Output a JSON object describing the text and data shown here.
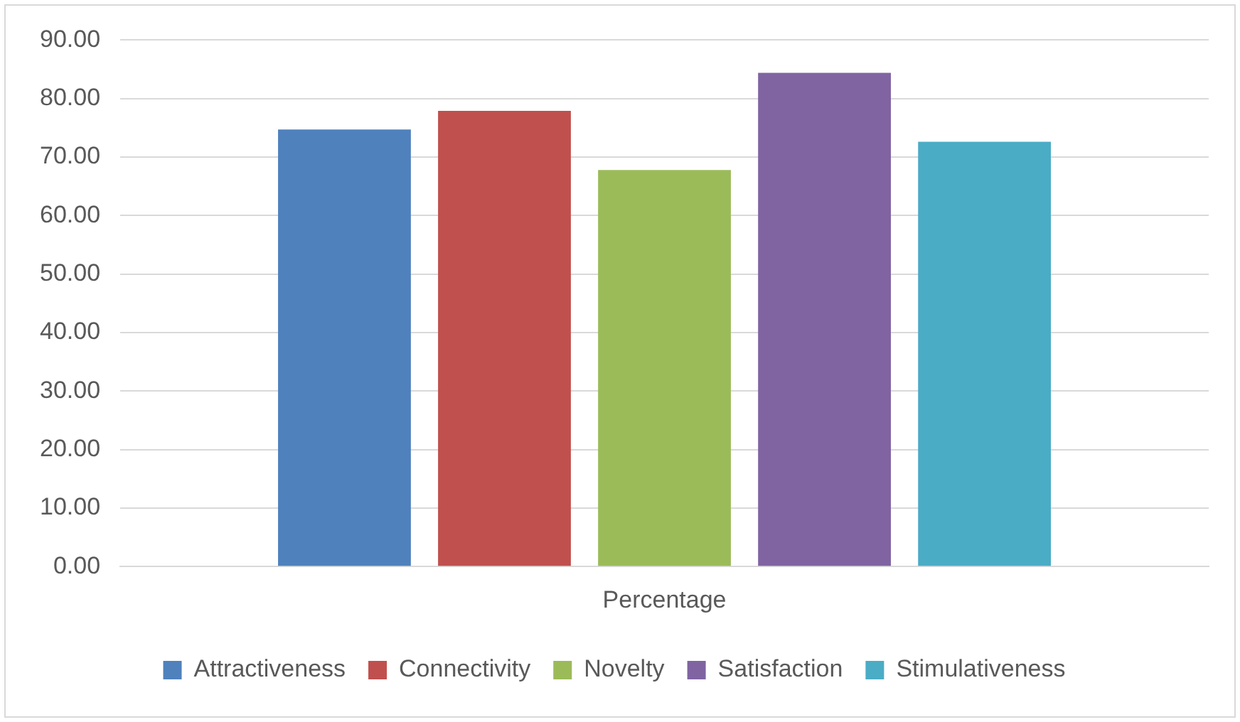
{
  "chart_data": {
    "type": "bar",
    "categories": [
      "Percentage"
    ],
    "series": [
      {
        "name": "Attractiveness",
        "color": "#4f81bd",
        "values": [
          74.7
        ]
      },
      {
        "name": "Connectivity",
        "color": "#c0504d",
        "values": [
          77.9
        ]
      },
      {
        "name": "Novelty",
        "color": "#9bbb59",
        "values": [
          67.8
        ]
      },
      {
        "name": "Satisfaction",
        "color": "#8064a2",
        "values": [
          84.4
        ]
      },
      {
        "name": "Stimulativeness",
        "color": "#4bacc6",
        "values": [
          72.6
        ]
      }
    ],
    "ylim": [
      0,
      90
    ],
    "yticks": [
      {
        "value": 0,
        "label": "0.00"
      },
      {
        "value": 10,
        "label": "10.00"
      },
      {
        "value": 20,
        "label": "20.00"
      },
      {
        "value": 30,
        "label": "30.00"
      },
      {
        "value": 40,
        "label": "40.00"
      },
      {
        "value": 50,
        "label": "50.00"
      },
      {
        "value": 60,
        "label": "60.00"
      },
      {
        "value": 70,
        "label": "70.00"
      },
      {
        "value": 80,
        "label": "80.00"
      },
      {
        "value": 90,
        "label": "90.00"
      }
    ],
    "grid": "y",
    "legend": "bottom"
  }
}
